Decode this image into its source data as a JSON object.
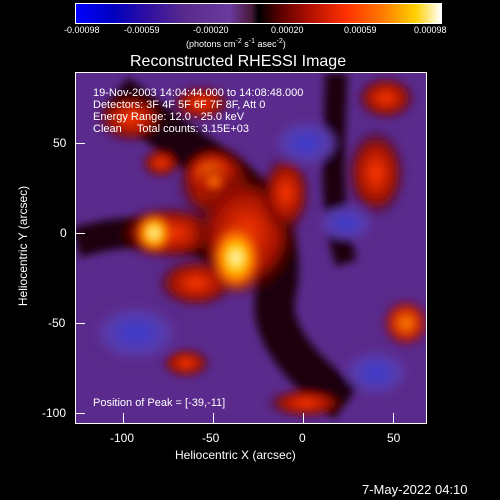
{
  "colorbar": {
    "ticks": [
      "-0.00098",
      "-0.00059",
      "-0.00020",
      "0.00020",
      "0.00059",
      "0.00098"
    ],
    "unit_label": "(photons cm",
    "unit_exp1": "-2",
    "unit_mid1": " s",
    "unit_exp2": "-1",
    "unit_mid2": " asec",
    "unit_exp3": "-2",
    "unit_end": ")"
  },
  "plot": {
    "title": "Reconstructed RHESSI Image",
    "info": [
      "19-Nov-2003 14:04:44.000 to 14:08:48.000",
      "Detectors: 3F 4F 5F 6F 7F 8F, Att 0",
      "Energy Range: 12.0 - 25.0 keV",
      "Clean     Total counts: 3.15E+03"
    ],
    "peak_text": "Position of Peak = [-39,-11]",
    "xlabel": "Heliocentric X (arcsec)",
    "ylabel": "Heliocentric Y (arcsec)",
    "xticks": [
      "-100",
      "-50",
      "0",
      "50"
    ],
    "yticks": [
      "50",
      "0",
      "-50",
      "-100"
    ]
  },
  "footer": {
    "timestamp": "7-May-2022 04:10"
  }
}
